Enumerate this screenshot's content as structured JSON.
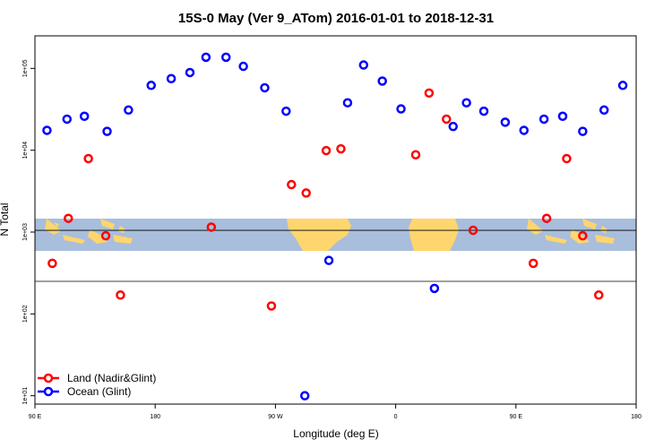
{
  "chart_data": {
    "type": "scatter",
    "title": "15S-0 May (Ver 9_ATom)   2016-01-01 to 2018-12-31",
    "xlabel": "Longitude (deg E)",
    "ylabel": "N Total",
    "y_scale": "log",
    "x_ticks": [
      {
        "value": 90,
        "label": "90 E"
      },
      {
        "value": 180,
        "label": "180"
      },
      {
        "value": 270,
        "label": "90 W"
      },
      {
        "value": 360,
        "label": "0"
      },
      {
        "value": 450,
        "label": "90 E"
      },
      {
        "value": 540,
        "label": "180"
      }
    ],
    "y_ticks": [
      {
        "value": 10,
        "label": "1e+01"
      },
      {
        "value": 100,
        "label": "1e+02"
      },
      {
        "value": 1000,
        "label": "1e+03"
      },
      {
        "value": 10000,
        "label": "1e+04"
      },
      {
        "value": 100000,
        "label": "1e+05"
      }
    ],
    "xlim": [
      90,
      540
    ],
    "ylim": [
      7.9,
      250000
    ],
    "grid": false,
    "legend_position": "bottom-left",
    "map_background": {
      "lat_range": "15S-0",
      "y_band": [
        250,
        1050
      ],
      "ocean_color": "#a8bedc",
      "land_color": "#ffd56d"
    },
    "series": [
      {
        "name": "Land (Nadir&Glint)",
        "color": "#ff0000",
        "points": [
          {
            "x": 103,
            "y": 415
          },
          {
            "x": 115,
            "y": 1470
          },
          {
            "x": 130,
            "y": 7900
          },
          {
            "x": 143,
            "y": 900
          },
          {
            "x": 154,
            "y": 170
          },
          {
            "x": 222,
            "y": 1150
          },
          {
            "x": 267,
            "y": 125
          },
          {
            "x": 282,
            "y": 3800
          },
          {
            "x": 293,
            "y": 3000
          },
          {
            "x": 308,
            "y": 9900
          },
          {
            "x": 319,
            "y": 10400
          },
          {
            "x": 375,
            "y": 8800
          },
          {
            "x": 385,
            "y": 50000
          },
          {
            "x": 398,
            "y": 24000
          },
          {
            "x": 418,
            "y": 1050
          },
          {
            "x": 463,
            "y": 415
          },
          {
            "x": 473,
            "y": 1470
          },
          {
            "x": 488,
            "y": 7900
          },
          {
            "x": 500,
            "y": 900
          },
          {
            "x": 512,
            "y": 170
          }
        ]
      },
      {
        "name": "Ocean (Glint)",
        "color": "#0000ff",
        "points": [
          {
            "x": 99,
            "y": 17500
          },
          {
            "x": 114,
            "y": 24000
          },
          {
            "x": 127,
            "y": 26000
          },
          {
            "x": 144,
            "y": 17000
          },
          {
            "x": 160,
            "y": 31000
          },
          {
            "x": 177,
            "y": 62000
          },
          {
            "x": 192,
            "y": 75000
          },
          {
            "x": 206,
            "y": 89000
          },
          {
            "x": 218,
            "y": 137000
          },
          {
            "x": 233,
            "y": 137000
          },
          {
            "x": 246,
            "y": 106000
          },
          {
            "x": 262,
            "y": 58000
          },
          {
            "x": 278,
            "y": 30000
          },
          {
            "x": 292,
            "y": 10
          },
          {
            "x": 310,
            "y": 450
          },
          {
            "x": 324,
            "y": 38000
          },
          {
            "x": 336,
            "y": 110000
          },
          {
            "x": 350,
            "y": 70000
          },
          {
            "x": 364,
            "y": 32000
          },
          {
            "x": 389,
            "y": 205
          },
          {
            "x": 403,
            "y": 19500
          },
          {
            "x": 413,
            "y": 38000
          },
          {
            "x": 426,
            "y": 30000
          },
          {
            "x": 442,
            "y": 22000
          },
          {
            "x": 456,
            "y": 17500
          },
          {
            "x": 471,
            "y": 24000
          },
          {
            "x": 485,
            "y": 26000
          },
          {
            "x": 500,
            "y": 17000
          },
          {
            "x": 516,
            "y": 31000
          },
          {
            "x": 530,
            "y": 62000
          }
        ]
      }
    ]
  }
}
